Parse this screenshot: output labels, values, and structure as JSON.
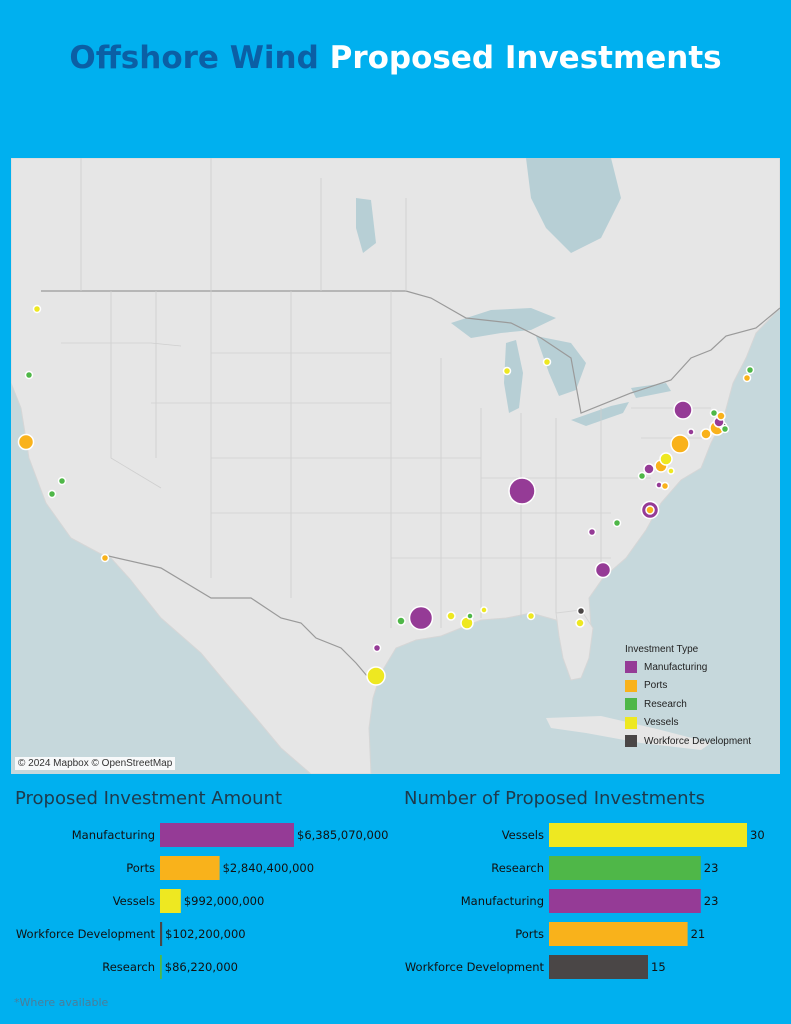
{
  "title": {
    "part1": "Offshore Wind",
    "part2": "Proposed Investments"
  },
  "colors": {
    "Manufacturing": "#953b96",
    "Ports": "#f9b21b",
    "Research": "#4fb748",
    "Vessels": "#eee821",
    "Workforce Development": "#4a4646"
  },
  "map": {
    "attribution": "© 2024 Mapbox © OpenStreetMap",
    "legend_title": "Investment Type",
    "legend_items": [
      "Manufacturing",
      "Ports",
      "Research",
      "Vessels",
      "Workforce Development"
    ]
  },
  "chart_data": [
    {
      "type": "bar",
      "orientation": "horizontal",
      "title": "Proposed Investment Amount",
      "categories": [
        "Manufacturing",
        "Ports",
        "Vessels",
        "Workforce Development",
        "Research"
      ],
      "values": [
        6385070000,
        2840400000,
        992000000,
        102200000,
        86220000
      ],
      "data_labels": [
        "$6,385,070,000",
        "$2,840,400,000",
        "$992,000,000",
        "$102,200,000",
        "$86,220,000"
      ]
    },
    {
      "type": "bar",
      "orientation": "horizontal",
      "title": "Number of Proposed Investments",
      "categories": [
        "Vessels",
        "Research",
        "Manufacturing",
        "Ports",
        "Workforce Development"
      ],
      "values": [
        30,
        23,
        23,
        21,
        15
      ],
      "data_labels": [
        "30",
        "23",
        "23",
        "21",
        "15"
      ]
    }
  ],
  "footnote": "*Where available"
}
